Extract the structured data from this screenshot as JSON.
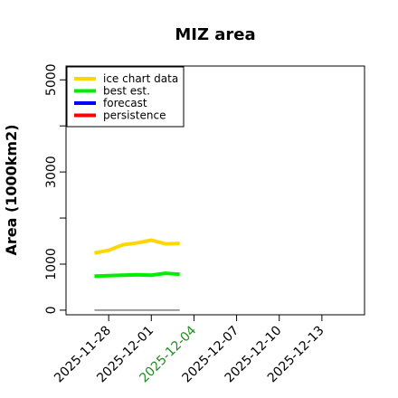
{
  "chart_data": {
    "type": "line",
    "title": "MIZ area",
    "xlabel": "",
    "ylabel": "Area (1000km2)",
    "x_axis": {
      "type": "date",
      "range": [
        "2025-11-25",
        "2025-12-16"
      ],
      "ticks": [
        "2025-11-28",
        "2025-12-01",
        "2025-12-04",
        "2025-12-07",
        "2025-12-10",
        "2025-12-13"
      ],
      "highlighted_tick": "2025-12-04",
      "highlight_color": "#228b22"
    },
    "y_axis": {
      "range": [
        -100,
        5300
      ],
      "ticks": [
        0,
        1000,
        2000,
        3000,
        4000,
        5000
      ],
      "tick_labels": [
        "0",
        "1000",
        "",
        "3000",
        "",
        "5000"
      ]
    },
    "grid": false,
    "legend": {
      "position": "top-left",
      "entries": [
        "ice chart data",
        "best est.",
        "forecast",
        "persistence"
      ]
    },
    "series": [
      {
        "name": "ice chart data",
        "color": "#ffd700",
        "x": [
          "2025-11-27",
          "2025-11-28",
          "2025-11-29",
          "2025-11-30",
          "2025-12-01",
          "2025-12-02",
          "2025-12-03"
        ],
        "values": [
          1240,
          1300,
          1420,
          1460,
          1520,
          1440,
          1450
        ]
      },
      {
        "name": "best est.",
        "color": "#00ee00",
        "x": [
          "2025-11-27",
          "2025-11-28",
          "2025-11-29",
          "2025-11-30",
          "2025-12-01",
          "2025-12-02",
          "2025-12-03"
        ],
        "values": [
          740,
          750,
          760,
          770,
          760,
          800,
          780
        ]
      },
      {
        "name": "forecast",
        "color": "#0000ff",
        "x": [],
        "values": []
      },
      {
        "name": "persistence",
        "color": "#ff0000",
        "x": [],
        "values": []
      }
    ],
    "baseline": {
      "color": "#808080",
      "x": [
        "2025-11-27",
        "2025-12-03"
      ],
      "values": [
        0,
        0
      ]
    }
  }
}
